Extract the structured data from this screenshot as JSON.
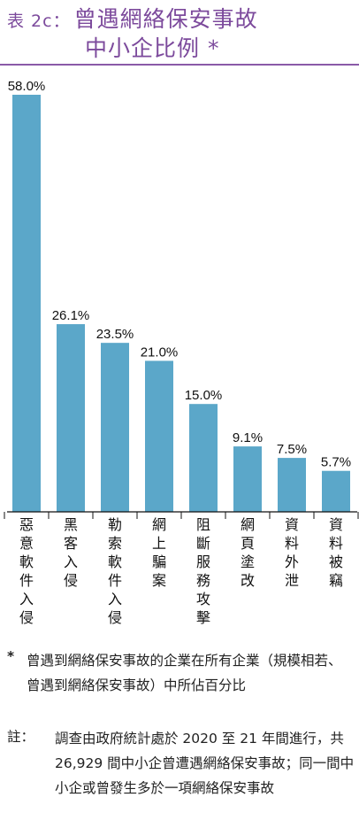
{
  "title": {
    "label": "表 2c：",
    "line1": "曾遇網絡保安事故",
    "line2": "中小企比例 *"
  },
  "chart_data": {
    "type": "bar",
    "categories": [
      "惡意軟件入侵",
      "黑客入侵",
      "勒索軟件入侵",
      "網上騙案",
      "阻斷服務攻擊",
      "網頁塗改",
      "資料外泄",
      "資料被竊"
    ],
    "values": [
      58.0,
      26.1,
      23.5,
      21.0,
      15.0,
      9.1,
      7.5,
      5.7
    ],
    "value_labels": [
      "58.0%",
      "26.1%",
      "23.5%",
      "21.0%",
      "15.0%",
      "9.1%",
      "7.5%",
      "5.7%"
    ],
    "unit": "%",
    "ylim": [
      0,
      58.0
    ],
    "grid": false,
    "bar_color": "#5ba7c9"
  },
  "notes": {
    "asterisk_marker": "*",
    "asterisk_text": "曾遇到網絡保安事故的企業在所有企業（規模相若、曾遇到網絡保安事故）中所佔百分比",
    "footnote_marker": "註：",
    "footnote_text": "調查由政府統計處於 2020 至 21 年間進行，共 26,929 間中小企曾遭遇網絡保安事故；同一間中小企或曾發生多於一項網絡保安事故"
  },
  "colors": {
    "title": "#7c4a9c",
    "rule": "#8a5aa8",
    "bar": "#5ba7c9",
    "text": "#111111"
  }
}
